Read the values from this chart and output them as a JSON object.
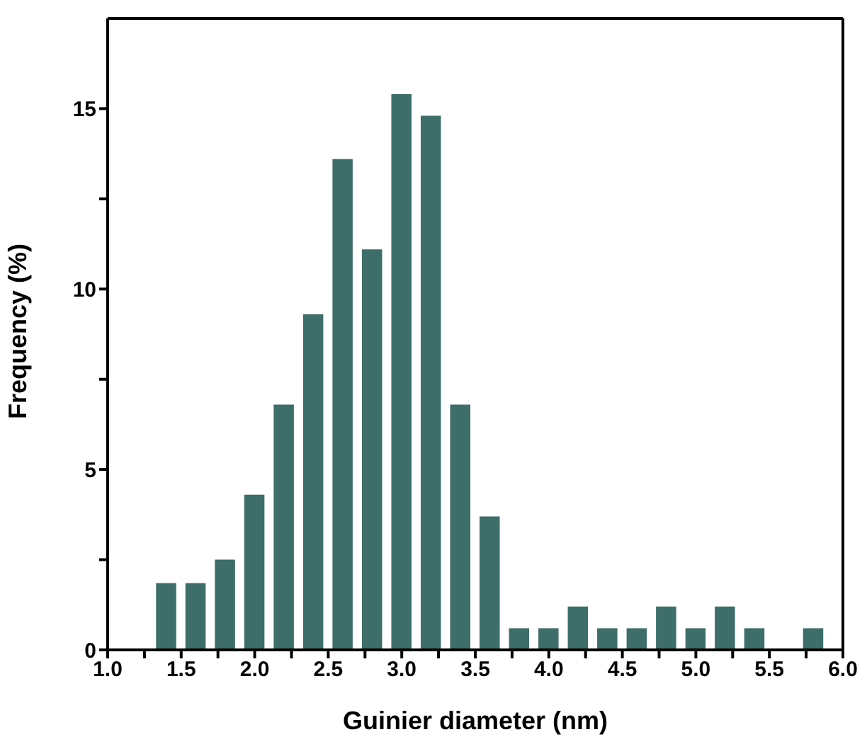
{
  "chart_data": {
    "type": "histogram",
    "xlabel": "Guinier diameter (nm)",
    "ylabel": "Frequency (%)",
    "color": "#3d6e6a",
    "bins": [
      1.3,
      1.5,
      1.7,
      1.9,
      2.1,
      2.3,
      2.5,
      2.7,
      2.9,
      3.1,
      3.3,
      3.5,
      3.7,
      3.9,
      4.1,
      4.3,
      4.5,
      4.7,
      4.9,
      5.1,
      5.3,
      5.5,
      5.7,
      5.9
    ],
    "values": [
      1.85,
      1.85,
      2.5,
      4.3,
      6.8,
      9.3,
      13.6,
      11.1,
      15.4,
      14.8,
      6.8,
      3.7,
      0.6,
      0.6,
      1.2,
      0.6,
      0.6,
      1.2,
      0.6,
      1.2,
      0.6,
      0,
      0.6
    ],
    "xlim": [
      1.0,
      6.0
    ],
    "xticks": [
      {
        "value": 1,
        "label": "1.0"
      },
      {
        "value": 1.25,
        "label": null
      },
      1.5,
      {
        "value": 1.75,
        "label": null
      },
      {
        "value": 2,
        "label": "2.0"
      },
      {
        "value": 2.25,
        "label": null
      },
      2.5,
      {
        "value": 2.75,
        "label": null
      },
      {
        "value": 3,
        "label": "3.0"
      },
      {
        "value": 3.25,
        "label": null
      },
      3.5,
      {
        "value": 3.75,
        "label": null
      },
      {
        "value": 4,
        "label": "4.0"
      },
      {
        "value": 4.25,
        "label": null
      },
      4.5,
      {
        "value": 4.75,
        "label": null
      },
      {
        "value": 5,
        "label": "5.0"
      },
      {
        "value": 5.25,
        "label": null
      },
      5.5,
      {
        "value": 5.75,
        "label": null
      },
      {
        "value": 6,
        "label": "6.0"
      }
    ],
    "ylim": [
      0,
      17.5
    ],
    "yticks": [
      0,
      {
        "value": 2.5,
        "label": null
      },
      5,
      {
        "value": 7.5,
        "label": null
      },
      10,
      {
        "value": 12.5,
        "label": null
      },
      15
    ],
    "grid": false,
    "legend": false
  }
}
